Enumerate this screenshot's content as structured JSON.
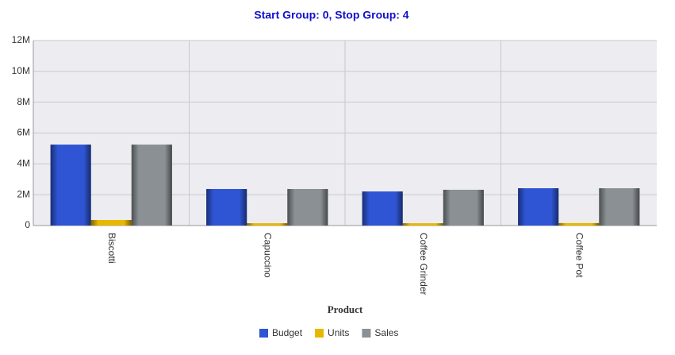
{
  "chart_data": {
    "type": "bar",
    "title": "Start Group: 0, Stop Group: 4",
    "x_label": "Product",
    "categories": [
      "Biscotti",
      "Capuccino",
      "Coffee Grinder",
      "Coffee Pot"
    ],
    "series": [
      {
        "name": "Budget",
        "color": "#2f55d4",
        "values": [
          5250000,
          2370000,
          2210000,
          2420000
        ]
      },
      {
        "name": "Units",
        "color": "#e6b800",
        "values": [
          360000,
          150000,
          150000,
          160000
        ]
      },
      {
        "name": "Sales",
        "color": "#8a9094",
        "values": [
          5250000,
          2370000,
          2320000,
          2420000
        ]
      }
    ],
    "ylim": [
      0,
      12000000
    ],
    "yticks": [
      0,
      {
        "value": 2000000,
        "label": "2M"
      },
      {
        "value": 4000000,
        "label": "4M"
      },
      {
        "value": 6000000,
        "label": "6M"
      },
      {
        "value": 8000000,
        "label": "8M"
      },
      {
        "value": 10000000,
        "label": "10M"
      },
      {
        "value": 12000000,
        "label": "12M"
      }
    ],
    "grid": true,
    "legend": "bottom"
  }
}
